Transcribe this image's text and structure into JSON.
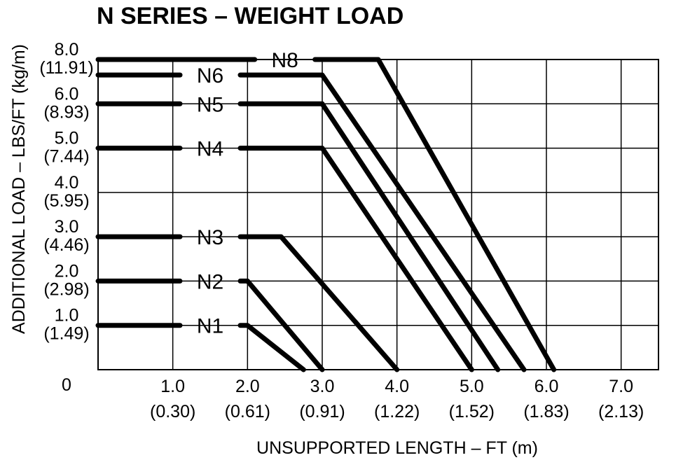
{
  "chart_data": {
    "type": "line",
    "title": "N SERIES – WEIGHT LOAD",
    "xlabel": "UNSUPPORTED LENGTH – FT (m)",
    "ylabel": "ADDITIONAL LOAD – LBS/FT (kg/m)",
    "xlim": [
      0,
      7.5
    ],
    "ylim": [
      0,
      7.0
    ],
    "origin_label": "0",
    "grid": true,
    "x_ticks": [
      {
        "value": 1.0,
        "label": "1.0",
        "sublabel": "(0.30)"
      },
      {
        "value": 2.0,
        "label": "2.0",
        "sublabel": "(0.61)"
      },
      {
        "value": 3.0,
        "label": "3.0",
        "sublabel": "(0.91)"
      },
      {
        "value": 4.0,
        "label": "4.0",
        "sublabel": "(1.22)"
      },
      {
        "value": 5.0,
        "label": "5.0",
        "sublabel": "(1.52)"
      },
      {
        "value": 6.0,
        "label": "6.0",
        "sublabel": "(1.83)"
      },
      {
        "value": 7.0,
        "label": "7.0",
        "sublabel": "(2.13)"
      }
    ],
    "y_ticks": [
      {
        "value": 1.0,
        "label": "1.0",
        "sublabel": "(1.49)"
      },
      {
        "value": 2.0,
        "label": "2.0",
        "sublabel": "(2.98)"
      },
      {
        "value": 3.0,
        "label": "3.0",
        "sublabel": "(4.46)"
      },
      {
        "value": 4.0,
        "label": "4.0",
        "sublabel": "(5.95)"
      },
      {
        "value": 5.0,
        "label": "5.0",
        "sublabel": "(7.44)"
      },
      {
        "value": 6.0,
        "label": "6.0",
        "sublabel": "(8.93)"
      },
      {
        "value": 8.0,
        "label": "8.0",
        "sublabel": "(11.91)",
        "y_pos": 7.0
      }
    ],
    "series": [
      {
        "name": "N1",
        "load": 1.0,
        "points": [
          [
            0,
            1.0
          ],
          [
            2.0,
            1.0
          ],
          [
            2.75,
            0
          ]
        ]
      },
      {
        "name": "N2",
        "load": 2.0,
        "points": [
          [
            0,
            2.0
          ],
          [
            2.0,
            2.0
          ],
          [
            3.0,
            0
          ]
        ]
      },
      {
        "name": "N3",
        "load": 3.0,
        "points": [
          [
            0,
            3.0
          ],
          [
            2.45,
            3.0
          ],
          [
            4.0,
            0
          ]
        ]
      },
      {
        "name": "N4",
        "load": 5.0,
        "points": [
          [
            0,
            5.0
          ],
          [
            3.0,
            5.0
          ],
          [
            5.0,
            0
          ]
        ]
      },
      {
        "name": "N5",
        "load": 6.0,
        "points": [
          [
            0,
            6.0
          ],
          [
            3.0,
            6.0
          ],
          [
            5.35,
            0
          ]
        ]
      },
      {
        "name": "N6",
        "load": 6.65,
        "points": [
          [
            0,
            6.65
          ],
          [
            3.0,
            6.65
          ],
          [
            5.7,
            0
          ]
        ]
      },
      {
        "name": "N8",
        "load": 7.0,
        "points": [
          [
            0,
            7.0
          ],
          [
            3.75,
            7.0
          ],
          [
            6.1,
            0
          ]
        ]
      }
    ]
  }
}
